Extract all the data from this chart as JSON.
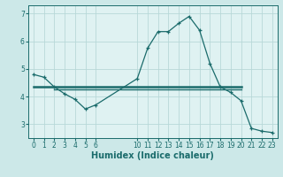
{
  "title": "",
  "xlabel": "Humidex (Indice chaleur)",
  "bg_color": "#cce8e8",
  "plot_bg_color": "#dff2f2",
  "line_color": "#1a6b6b",
  "grid_color": "#b8d8d8",
  "x_main": [
    0,
    1,
    2,
    3,
    4,
    5,
    6,
    10,
    11,
    12,
    13,
    14,
    15,
    16,
    17,
    18,
    19,
    20,
    21,
    22,
    23
  ],
  "y_main": [
    4.8,
    4.7,
    4.35,
    4.1,
    3.9,
    3.55,
    3.7,
    4.65,
    5.75,
    6.35,
    6.35,
    6.65,
    6.9,
    6.4,
    5.2,
    4.35,
    4.15,
    3.85,
    2.85,
    2.75,
    2.7
  ],
  "x_hline1_start": 0,
  "x_hline1_end": 20,
  "y_hline1": 4.35,
  "x_hline2_start": 2,
  "x_hline2_end": 20,
  "y_hline2": 4.27,
  "ylim": [
    2.5,
    7.3
  ],
  "xlim": [
    -0.5,
    23.5
  ],
  "yticks": [
    3,
    4,
    5,
    6,
    7
  ],
  "xticks": [
    0,
    1,
    2,
    3,
    4,
    5,
    6,
    10,
    11,
    12,
    13,
    14,
    15,
    16,
    17,
    18,
    19,
    20,
    21,
    22,
    23
  ],
  "tick_fontsize": 5.5,
  "xlabel_fontsize": 7
}
